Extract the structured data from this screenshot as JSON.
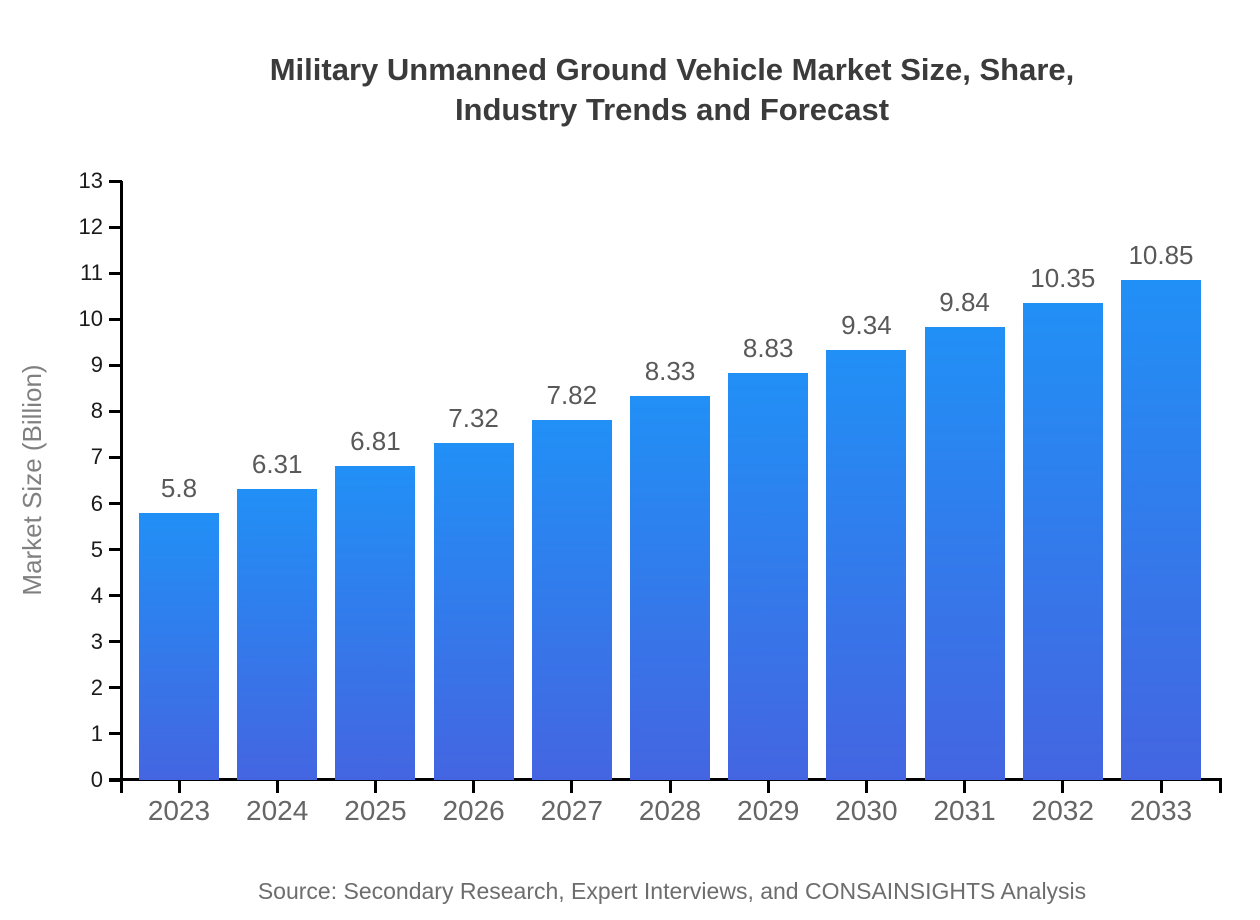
{
  "title": {
    "line1": "Military Unmanned Ground Vehicle Market Size, Share,",
    "line2": "Industry Trends and Forecast"
  },
  "source": "Source: Secondary Research, Expert Interviews, and CONSAINSIGHTS Analysis",
  "chart_data": {
    "type": "bar",
    "title": "Military Unmanned Ground Vehicle Market Size, Share, Industry Trends and Forecast",
    "categories": [
      "2023",
      "2024",
      "2025",
      "2026",
      "2027",
      "2028",
      "2029",
      "2030",
      "2031",
      "2032",
      "2033"
    ],
    "values": [
      5.8,
      6.31,
      6.81,
      7.32,
      7.82,
      8.33,
      8.83,
      9.34,
      9.84,
      10.35,
      10.85
    ],
    "value_labels": [
      "5.8",
      "6.31",
      "6.81",
      "7.32",
      "7.82",
      "8.33",
      "8.83",
      "9.34",
      "9.84",
      "10.35",
      "10.85"
    ],
    "xlabel": "",
    "ylabel": "Market Size (Billion)",
    "ylim": [
      0,
      13
    ],
    "yticks": [
      0,
      1,
      2,
      3,
      4,
      5,
      6,
      7,
      8,
      9,
      10,
      11,
      12,
      13
    ],
    "grid": false,
    "legend": "none",
    "colors": {
      "bar_gradient_top": "#2190F6",
      "bar_gradient_bottom": "#4465E1",
      "axis": "#000000",
      "title_text": "#3b3b3b",
      "ytick_text": "#1a1a1a",
      "xtick_text": "#666666",
      "value_label_text": "#595959",
      "ylabel_text": "#808080",
      "source_text": "#6d6d6d",
      "background": "#ffffff"
    }
  }
}
